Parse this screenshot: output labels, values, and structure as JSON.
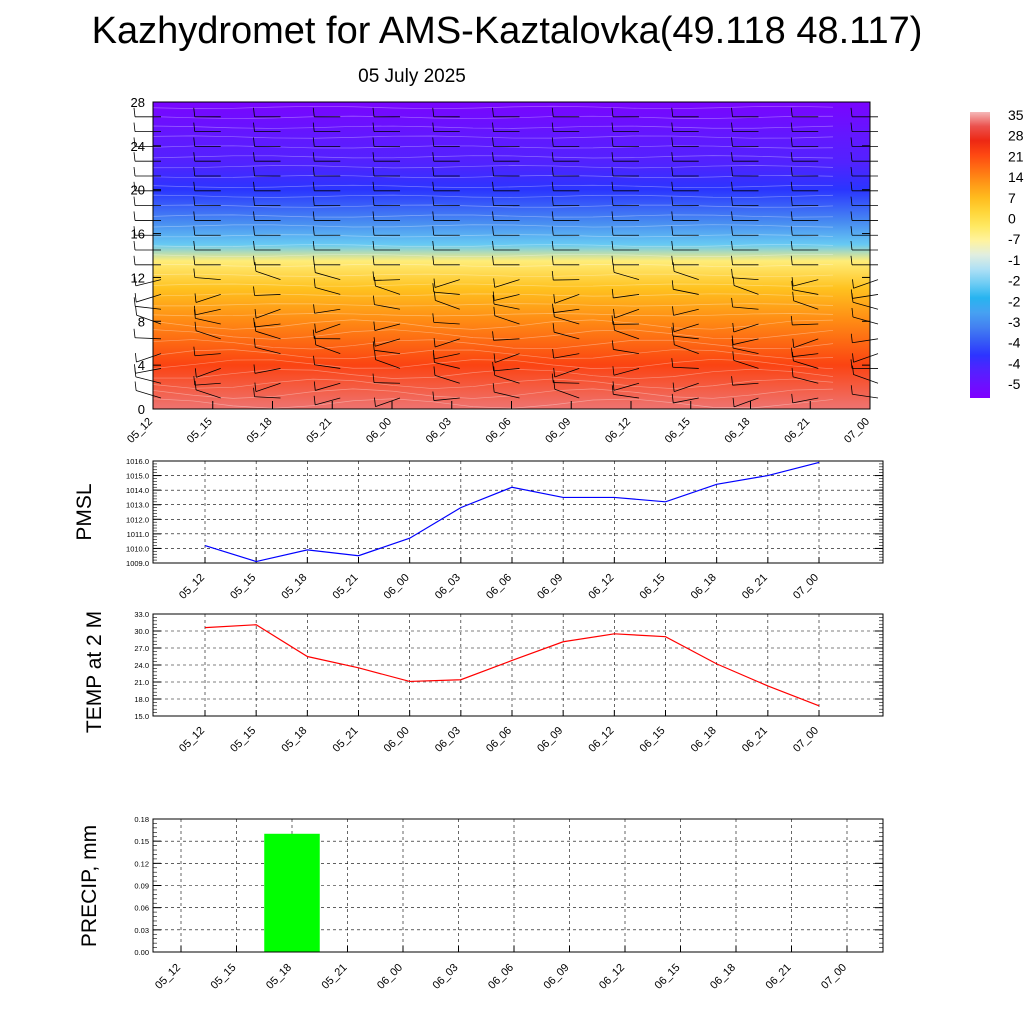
{
  "title": "Kazhydromet for AMS-Kaztalovka(49.118 48.117)",
  "subtitle": "05 July 2025",
  "colors": {
    "pmsl_line": "#0000ff",
    "temp_line": "#ff0000",
    "precip_bar": "#00ff00",
    "axis": "#000000",
    "grid": "#000000"
  },
  "chart_data": [
    {
      "type": "heatmap",
      "title": "",
      "xlabel": "",
      "ylabel": "",
      "x": [
        "05_12",
        "05_15",
        "05_18",
        "05_21",
        "06_00",
        "06_03",
        "06_06",
        "06_09",
        "06_12",
        "06_15",
        "06_18",
        "06_21",
        "07_00"
      ],
      "ylim": [
        0,
        28
      ],
      "yticks": [
        0,
        4,
        8,
        12,
        16,
        20,
        24,
        28
      ],
      "colorbar_labels": [
        "35",
        "28",
        "21",
        "14",
        "7",
        "0",
        "-7",
        "-1",
        "-2",
        "-2",
        "-3",
        "-4",
        "-4",
        "-5"
      ],
      "colorbar_range": [
        -56,
        35
      ],
      "overlay": "wind barbs",
      "temperature_profile": [
        {
          "level": 0,
          "value": 32
        },
        {
          "level": 4,
          "value": 22
        },
        {
          "level": 8,
          "value": 14
        },
        {
          "level": 11,
          "value": 7
        },
        {
          "level": 13.5,
          "value": -3
        },
        {
          "level": 15,
          "value": -20
        },
        {
          "level": 17,
          "value": -32
        },
        {
          "level": 20,
          "value": -42
        },
        {
          "level": 22.5,
          "value": -47
        },
        {
          "level": 25,
          "value": -50
        },
        {
          "level": 28,
          "value": -55
        }
      ]
    },
    {
      "type": "line",
      "title": "",
      "xlabel": "",
      "ylabel": "PMSL",
      "categories": [
        "05_12",
        "05_15",
        "05_18",
        "05_21",
        "06_00",
        "06_03",
        "06_06",
        "06_09",
        "06_12",
        "06_15",
        "06_18",
        "06_21",
        "07_00"
      ],
      "ylim": [
        1009.0,
        1016.0
      ],
      "yticks": [
        "1009.0",
        "1010.0",
        "1011.0",
        "1012.0",
        "1013.0",
        "1014.0",
        "1015.0",
        "1016.0"
      ],
      "grid": true,
      "series": [
        {
          "values": [
            1010.2,
            1009.1,
            1009.9,
            1009.5,
            1010.7,
            1012.8,
            1014.2,
            1013.5,
            1013.5,
            1013.2,
            1014.4,
            1015.0,
            1015.9
          ]
        }
      ]
    },
    {
      "type": "line",
      "title": "",
      "xlabel": "",
      "ylabel": "TEMP at 2 M",
      "categories": [
        "05_12",
        "05_15",
        "05_18",
        "05_21",
        "06_00",
        "06_03",
        "06_06",
        "06_09",
        "06_12",
        "06_15",
        "06_18",
        "06_21",
        "07_00"
      ],
      "ylim": [
        15.0,
        33.0
      ],
      "yticks": [
        "15.0",
        "18.0",
        "21.0",
        "24.0",
        "27.0",
        "30.0",
        "33.0"
      ],
      "grid": true,
      "series": [
        {
          "values": [
            30.6,
            31.1,
            25.5,
            23.5,
            21.1,
            21.4,
            24.8,
            28.1,
            29.5,
            29.0,
            24.2,
            20.3,
            16.8
          ]
        }
      ]
    },
    {
      "type": "bar",
      "title": "",
      "xlabel": "",
      "ylabel": "PRECIP, mm",
      "categories": [
        "05_12",
        "05_15",
        "05_18",
        "05_21",
        "06_00",
        "06_03",
        "06_06",
        "06_09",
        "06_12",
        "06_15",
        "06_18",
        "06_21",
        "07_00"
      ],
      "ylim": [
        0.0,
        0.18
      ],
      "yticks": [
        "0.00",
        "0.03",
        "0.06",
        "0.09",
        "0.12",
        "0.15",
        "0.18"
      ],
      "grid": true,
      "series": [
        {
          "values": [
            0,
            0,
            0.16,
            0,
            0,
            0,
            0,
            0,
            0,
            0,
            0,
            0,
            0
          ]
        }
      ]
    }
  ]
}
